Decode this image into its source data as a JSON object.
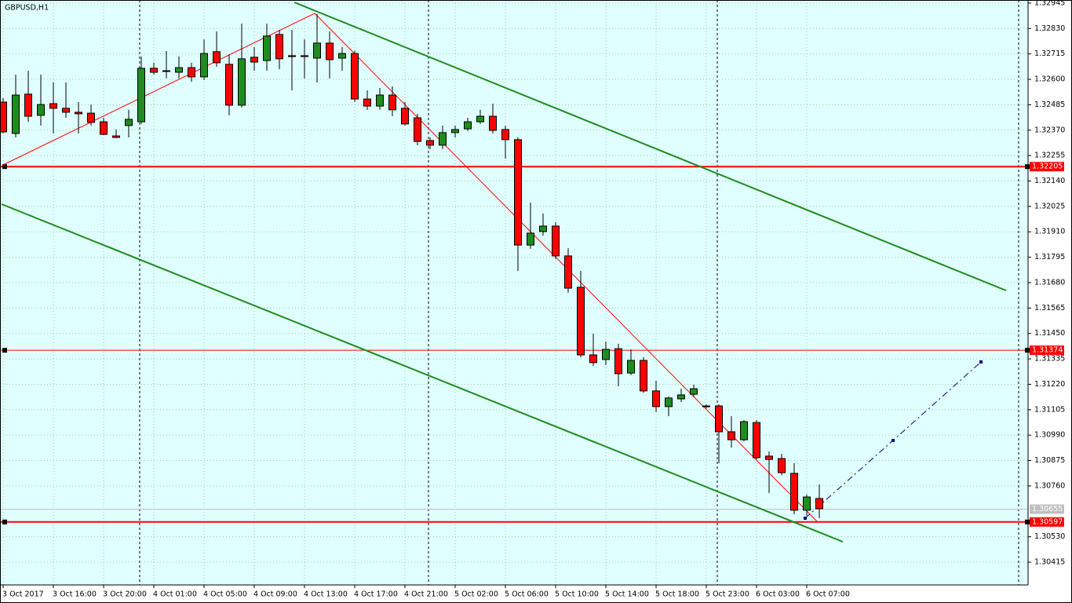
{
  "chart_data": {
    "type": "candlestick",
    "title": "GBPUSD,H1",
    "up_color": "#1f8c1f",
    "down_color": "#ff0000",
    "categories": [
      "3 Oct 2017",
      null,
      null,
      null,
      "3 Oct 16:00",
      null,
      null,
      null,
      "3 Oct 20:00",
      null,
      null,
      null,
      "4 Oct 01:00",
      null,
      null,
      null,
      "4 Oct 05:00",
      null,
      null,
      null,
      "4 Oct 09:00",
      null,
      null,
      null,
      "4 Oct 13:00",
      null,
      null,
      null,
      "4 Oct 17:00",
      null,
      null,
      null,
      "4 Oct 21:00",
      null,
      null,
      null,
      "5 Oct 02:00",
      null,
      null,
      null,
      "5 Oct 06:00",
      null,
      null,
      null,
      "5 Oct 10:00",
      null,
      null,
      null,
      "5 Oct 14:00",
      null,
      null,
      null,
      "5 Oct 18:00",
      null,
      null,
      null,
      "5 Oct 23:00",
      null,
      null,
      null,
      "6 Oct 03:00",
      null,
      null,
      null,
      "6 Oct 07:00",
      null
    ],
    "open": [
      1.32497,
      1.32355,
      1.32533,
      1.32437,
      1.3249,
      1.32469,
      1.32451,
      1.32447,
      1.32408,
      1.32344,
      1.32391,
      1.32408,
      1.3265,
      1.32639,
      1.32632,
      1.32653,
      1.32611,
      1.32725,
      1.32668,
      1.32483,
      1.327,
      1.32685,
      1.32803,
      1.32707,
      1.32707,
      1.32696,
      1.32764,
      1.32696,
      1.32717,
      1.32511,
      1.32479,
      1.32529,
      1.32469,
      1.32426,
      1.32323,
      1.32302,
      1.32359,
      1.32376,
      1.32408,
      1.32433,
      1.32373,
      1.32327,
      1.3185,
      1.31911,
      1.31936,
      1.31801,
      1.31659,
      1.31353,
      1.31332,
      1.31381,
      1.31271,
      1.31328,
      1.3119,
      1.31119,
      1.31154,
      1.31175,
      1.31122,
      1.31122,
      1.31005,
      1.30969,
      1.31047,
      1.30895,
      1.30884,
      1.30817,
      1.3065,
      1.30703
    ],
    "high": [
      1.32515,
      1.32621,
      1.32639,
      1.32621,
      1.32586,
      1.32586,
      1.32497,
      1.32486,
      1.32426,
      1.32373,
      1.32462,
      1.32703,
      1.32675,
      1.32728,
      1.32703,
      1.32675,
      1.32781,
      1.32817,
      1.3271,
      1.32852,
      1.32746,
      1.32852,
      1.32824,
      1.32824,
      1.32781,
      1.32895,
      1.32817,
      1.32746,
      1.32728,
      1.3255,
      1.32561,
      1.32568,
      1.32497,
      1.32444,
      1.32337,
      1.32391,
      1.32391,
      1.32426,
      1.32462,
      1.3249,
      1.32391,
      1.32337,
      1.32042,
      1.31993,
      1.31953,
      1.31836,
      1.31733,
      1.31449,
      1.31413,
      1.31403,
      1.31378,
      1.31342,
      1.31236,
      1.31165,
      1.312,
      1.31218,
      1.31129,
      1.31129,
      1.31076,
      1.31058,
      1.31058,
      1.30916,
      1.30905,
      1.30863,
      1.30721,
      1.30767
    ],
    "low": [
      1.32355,
      1.32337,
      1.32408,
      1.32391,
      1.32355,
      1.32426,
      1.32355,
      1.32391,
      1.32348,
      1.32334,
      1.32337,
      1.32398,
      1.32621,
      1.32604,
      1.32604,
      1.32589,
      1.32597,
      1.32657,
      1.32437,
      1.32472,
      1.32639,
      1.32639,
      1.32646,
      1.3255,
      1.32604,
      1.32586,
      1.32604,
      1.32639,
      1.32497,
      1.32462,
      1.32462,
      1.32433,
      1.32391,
      1.32302,
      1.32284,
      1.32284,
      1.32337,
      1.32366,
      1.32398,
      1.32355,
      1.32241,
      1.31733,
      1.31833,
      1.31893,
      1.31787,
      1.31634,
      1.31342,
      1.31303,
      1.31307,
      1.31211,
      1.31261,
      1.31182,
      1.31094,
      1.31076,
      1.3114,
      1.31165,
      1.31111,
      1.30863,
      1.30934,
      1.30962,
      1.3088,
      1.30728,
      1.30809,
      1.30632,
      1.30625,
      1.30614
    ],
    "close": [
      1.32362,
      1.32529,
      1.32433,
      1.32486,
      1.32469,
      1.32451,
      1.32444,
      1.32405,
      1.32351,
      1.32337,
      1.32419,
      1.3265,
      1.32632,
      1.32636,
      1.32653,
      1.32611,
      1.32717,
      1.32675,
      1.32483,
      1.32693,
      1.32678,
      1.32796,
      1.32693,
      1.32703,
      1.32703,
      1.32764,
      1.32689,
      1.32717,
      1.32511,
      1.32479,
      1.32529,
      1.32462,
      1.32398,
      1.32319,
      1.32302,
      1.32359,
      1.32373,
      1.32408,
      1.32433,
      1.32369,
      1.32327,
      1.3185,
      1.31904,
      1.31936,
      1.31801,
      1.31655,
      1.31353,
      1.31318,
      1.31378,
      1.31268,
      1.31328,
      1.3119,
      1.31119,
      1.31158,
      1.31172,
      1.312,
      1.31119,
      1.31005,
      1.30969,
      1.31051,
      1.30888,
      1.3088,
      1.3082,
      1.3065,
      1.3071,
      1.30657
    ],
    "ylim": [
      1.30312,
      1.32959
    ],
    "yticks": [
      {
        "value": 1.32945,
        "label": "1.32945"
      },
      {
        "value": 1.3283,
        "label": "1.32830"
      },
      {
        "value": 1.32715,
        "label": "1.32715"
      },
      {
        "value": 1.326,
        "label": "1.32600"
      },
      {
        "value": 1.32485,
        "label": "1.32485"
      },
      {
        "value": 1.3237,
        "label": "1.32370"
      },
      {
        "value": 1.32255,
        "label": "1.32255"
      },
      {
        "value": 1.3214,
        "label": "1.32140"
      },
      {
        "value": 1.32025,
        "label": "1.32025"
      },
      {
        "value": 1.3191,
        "label": "1.31910"
      },
      {
        "value": 1.31795,
        "label": "1.31795"
      },
      {
        "value": 1.3168,
        "label": "1.31680"
      },
      {
        "value": 1.31565,
        "label": "1.31565"
      },
      {
        "value": 1.3145,
        "label": "1.31450"
      },
      {
        "value": 1.31335,
        "label": "1.31335"
      },
      {
        "value": 1.3122,
        "label": "1.31220"
      },
      {
        "value": 1.31105,
        "label": "1.31105"
      },
      {
        "value": 1.3099,
        "label": "1.30990"
      },
      {
        "value": 1.30875,
        "label": "1.30875"
      },
      {
        "value": 1.3076,
        "label": "1.30760"
      },
      {
        "value": 1.3053,
        "label": "1.30530"
      },
      {
        "value": 1.30415,
        "label": "1.30415"
      }
    ],
    "grid": true,
    "levels": [
      {
        "value": 1.32205,
        "label": "1.32205",
        "color": "#ff0000",
        "width": 2
      },
      {
        "value": 1.31374,
        "label": "1.31374",
        "color": "#ff0000",
        "width": 1
      },
      {
        "value": 1.30597,
        "label": "1.30597",
        "color": "#ff0000",
        "width": 2
      }
    ],
    "bid": {
      "value": 1.30655,
      "label": "1.30655",
      "color": "#c0c0c0"
    }
  }
}
